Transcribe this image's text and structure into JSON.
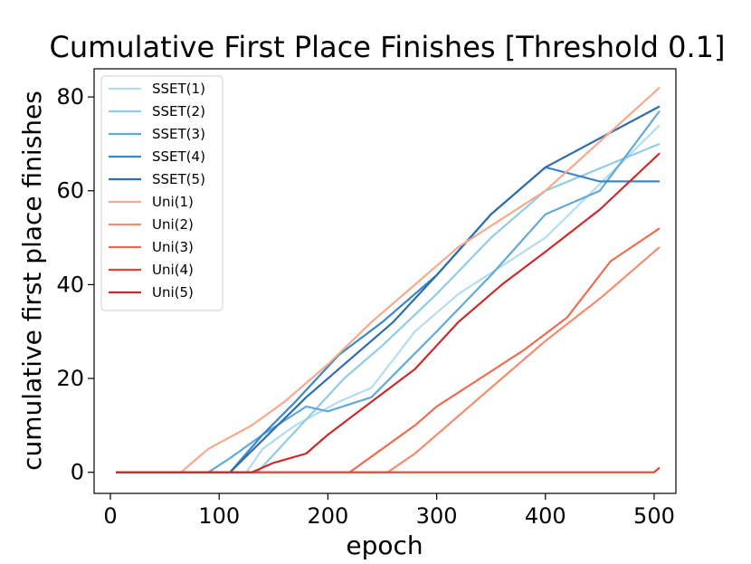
{
  "chart_data": {
    "type": "line",
    "title": "Cumulative First Place Finishes [Threshold 0.1]",
    "xlabel": "epoch",
    "ylabel": "cumulative first place finishes",
    "xlim": [
      -15,
      520
    ],
    "ylim": [
      -4.5,
      86
    ],
    "xticks": [
      0,
      100,
      200,
      300,
      400,
      500
    ],
    "yticks": [
      0,
      20,
      40,
      60,
      80
    ],
    "grid": false,
    "legend_position": "upper left",
    "series": [
      {
        "name": "SSET(1)",
        "color": "#b3dcf2",
        "points": [
          [
            5,
            0
          ],
          [
            125,
            0
          ],
          [
            140,
            5
          ],
          [
            170,
            10
          ],
          [
            210,
            15
          ],
          [
            240,
            18
          ],
          [
            280,
            30
          ],
          [
            320,
            38
          ],
          [
            400,
            50
          ],
          [
            505,
            74
          ]
        ]
      },
      {
        "name": "SSET(2)",
        "color": "#90cbe8",
        "points": [
          [
            5,
            0
          ],
          [
            135,
            0
          ],
          [
            175,
            10
          ],
          [
            215,
            20
          ],
          [
            250,
            27
          ],
          [
            300,
            38
          ],
          [
            350,
            50
          ],
          [
            400,
            60
          ],
          [
            505,
            70
          ]
        ]
      },
      {
        "name": "SSET(3)",
        "color": "#62aad6",
        "points": [
          [
            5,
            0
          ],
          [
            90,
            0
          ],
          [
            110,
            3
          ],
          [
            140,
            8
          ],
          [
            180,
            14
          ],
          [
            200,
            13
          ],
          [
            240,
            16
          ],
          [
            300,
            30
          ],
          [
            350,
            42
          ],
          [
            400,
            55
          ],
          [
            450,
            60
          ],
          [
            505,
            77
          ]
        ]
      },
      {
        "name": "SSET(4)",
        "color": "#3b86c7",
        "points": [
          [
            5,
            0
          ],
          [
            110,
            0
          ],
          [
            140,
            8
          ],
          [
            170,
            15
          ],
          [
            210,
            25
          ],
          [
            250,
            32
          ],
          [
            300,
            42
          ],
          [
            350,
            55
          ],
          [
            400,
            65
          ],
          [
            450,
            62
          ],
          [
            505,
            62
          ]
        ]
      },
      {
        "name": "SSET(5)",
        "color": "#2e6cb0",
        "points": [
          [
            5,
            0
          ],
          [
            110,
            0
          ],
          [
            145,
            8
          ],
          [
            180,
            16
          ],
          [
            220,
            24
          ],
          [
            260,
            32
          ],
          [
            300,
            42
          ],
          [
            350,
            55
          ],
          [
            400,
            65
          ],
          [
            505,
            78
          ]
        ]
      },
      {
        "name": "Uni(1)",
        "color": "#f9a98a",
        "points": [
          [
            5,
            0
          ],
          [
            65,
            0
          ],
          [
            90,
            5
          ],
          [
            130,
            10
          ],
          [
            160,
            15
          ],
          [
            200,
            23
          ],
          [
            240,
            32
          ],
          [
            280,
            40
          ],
          [
            320,
            48
          ],
          [
            400,
            60
          ],
          [
            505,
            82
          ]
        ]
      },
      {
        "name": "Uni(2)",
        "color": "#f58c6e",
        "points": [
          [
            5,
            0
          ],
          [
            255,
            0
          ],
          [
            280,
            4
          ],
          [
            320,
            12
          ],
          [
            360,
            20
          ],
          [
            400,
            28
          ],
          [
            450,
            37
          ],
          [
            505,
            48
          ]
        ]
      },
      {
        "name": "Uni(3)",
        "color": "#ee6b4f",
        "points": [
          [
            5,
            0
          ],
          [
            220,
            0
          ],
          [
            250,
            5
          ],
          [
            280,
            10
          ],
          [
            300,
            14
          ],
          [
            340,
            20
          ],
          [
            380,
            26
          ],
          [
            420,
            33
          ],
          [
            460,
            45
          ],
          [
            505,
            52
          ]
        ]
      },
      {
        "name": "Uni(4)",
        "color": "#e0463a",
        "points": [
          [
            5,
            0
          ],
          [
            500,
            0
          ],
          [
            505,
            1
          ]
        ]
      },
      {
        "name": "Uni(5)",
        "color": "#cc2a2a",
        "points": [
          [
            5,
            0
          ],
          [
            130,
            0
          ],
          [
            150,
            2
          ],
          [
            180,
            4
          ],
          [
            200,
            8
          ],
          [
            240,
            15
          ],
          [
            280,
            22
          ],
          [
            320,
            32
          ],
          [
            360,
            40
          ],
          [
            400,
            47
          ],
          [
            450,
            56
          ],
          [
            505,
            68
          ]
        ]
      }
    ]
  }
}
